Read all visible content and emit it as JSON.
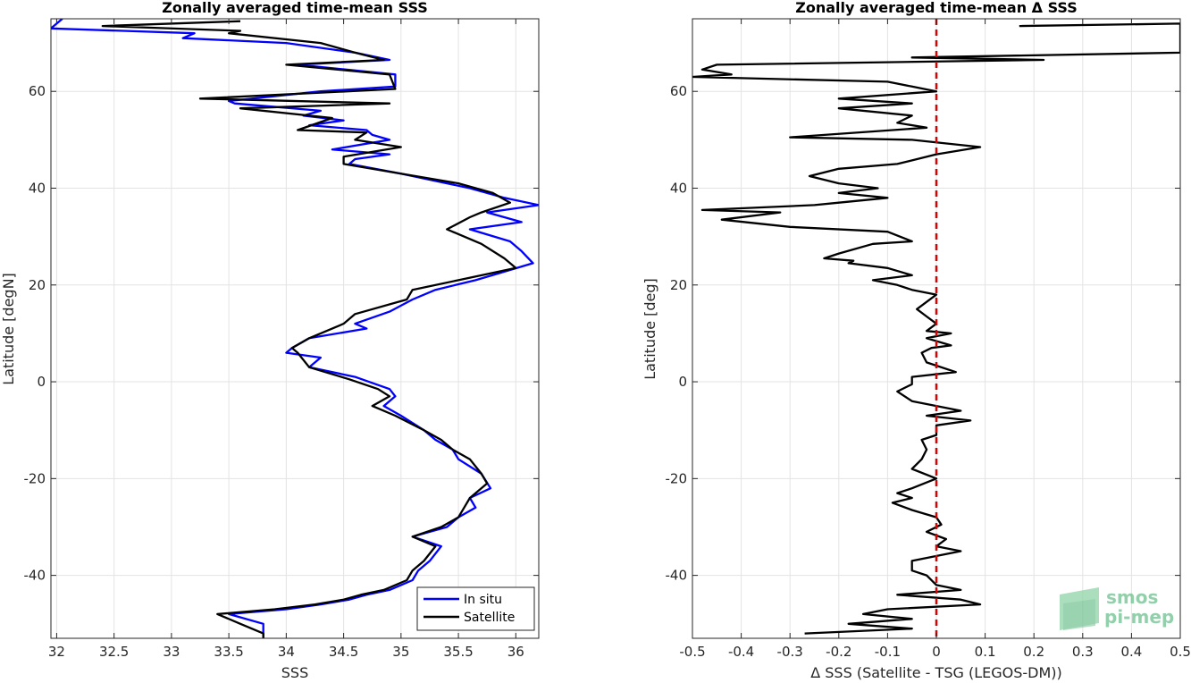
{
  "chart_data": [
    {
      "type": "line",
      "title": "Zonally averaged time-mean SSS",
      "xlabel": "SSS",
      "ylabel": "Latitude [degN]",
      "xlim": [
        31.95,
        36.2
      ],
      "ylim": [
        -53,
        75
      ],
      "xticks": [
        "32",
        "32.5",
        "33",
        "33.5",
        "34",
        "34.5",
        "35",
        "35.5",
        "36"
      ],
      "yticks": [
        "-40",
        "-20",
        "0",
        "20",
        "40",
        "60"
      ],
      "grid": true,
      "legend_position": "bottom-right",
      "series": [
        {
          "name": "In situ",
          "color": "#0000ff",
          "points": [
            [
              32.05,
              75
            ],
            [
              31.95,
              73
            ],
            [
              33.2,
              72
            ],
            [
              33.1,
              71
            ],
            [
              34.0,
              70
            ],
            [
              34.6,
              68
            ],
            [
              34.9,
              66.5
            ],
            [
              34.1,
              65.5
            ],
            [
              34.95,
              63.5
            ],
            [
              34.95,
              61
            ],
            [
              34.3,
              60
            ],
            [
              33.5,
              58
            ],
            [
              33.55,
              57.5
            ],
            [
              34.3,
              56
            ],
            [
              34.15,
              55
            ],
            [
              34.5,
              54
            ],
            [
              34.2,
              53
            ],
            [
              34.7,
              52
            ],
            [
              34.75,
              51
            ],
            [
              34.9,
              50
            ],
            [
              34.4,
              48
            ],
            [
              34.9,
              47
            ],
            [
              34.6,
              46
            ],
            [
              34.55,
              45
            ],
            [
              35.0,
              43
            ],
            [
              35.6,
              40
            ],
            [
              35.9,
              38
            ],
            [
              36.2,
              36.5
            ],
            [
              35.75,
              35
            ],
            [
              36.05,
              33
            ],
            [
              35.6,
              31.5
            ],
            [
              35.95,
              29
            ],
            [
              36.05,
              27
            ],
            [
              36.15,
              24.5
            ],
            [
              35.65,
              21
            ],
            [
              35.3,
              19
            ],
            [
              35.1,
              17
            ],
            [
              34.9,
              14.5
            ],
            [
              34.6,
              12
            ],
            [
              34.7,
              11
            ],
            [
              34.2,
              9
            ],
            [
              34.05,
              7
            ],
            [
              34.0,
              6
            ],
            [
              34.3,
              5
            ],
            [
              34.2,
              3
            ],
            [
              34.6,
              1
            ],
            [
              34.9,
              -1.5
            ],
            [
              34.95,
              -3
            ],
            [
              34.85,
              -5
            ],
            [
              35.0,
              -7
            ],
            [
              35.2,
              -10
            ],
            [
              35.3,
              -12
            ],
            [
              35.45,
              -14
            ],
            [
              35.5,
              -16
            ],
            [
              35.7,
              -19
            ],
            [
              35.78,
              -22
            ],
            [
              35.6,
              -24
            ],
            [
              35.65,
              -26
            ],
            [
              35.5,
              -28
            ],
            [
              35.4,
              -30
            ],
            [
              35.1,
              -32
            ],
            [
              35.35,
              -34
            ],
            [
              35.25,
              -37
            ],
            [
              35.15,
              -39
            ],
            [
              35.1,
              -41
            ],
            [
              34.9,
              -43
            ],
            [
              34.7,
              -44
            ],
            [
              34.55,
              -45
            ],
            [
              34.3,
              -46
            ],
            [
              34.0,
              -47
            ],
            [
              33.5,
              -48
            ],
            [
              33.8,
              -50
            ],
            [
              33.8,
              -52
            ],
            [
              33.8,
              -53
            ]
          ]
        },
        {
          "name": "Satellite",
          "color": "#000000",
          "points": [
            [
              33.6,
              74.5
            ],
            [
              32.4,
              73.5
            ],
            [
              33.6,
              72.5
            ],
            [
              33.5,
              72
            ],
            [
              34.3,
              70
            ],
            [
              34.6,
              68
            ],
            [
              34.85,
              66.5
            ],
            [
              34.0,
              65.5
            ],
            [
              34.9,
              63.5
            ],
            [
              34.95,
              60.5
            ],
            [
              33.25,
              58.5
            ],
            [
              34.9,
              57.5
            ],
            [
              33.6,
              56.5
            ],
            [
              34.4,
              54.5
            ],
            [
              34.1,
              52
            ],
            [
              34.7,
              51.5
            ],
            [
              34.6,
              50
            ],
            [
              35.0,
              48.5
            ],
            [
              34.5,
              46.5
            ],
            [
              34.5,
              45
            ],
            [
              35.0,
              43
            ],
            [
              35.5,
              41
            ],
            [
              35.8,
              39
            ],
            [
              35.95,
              37
            ],
            [
              35.7,
              35
            ],
            [
              35.6,
              34
            ],
            [
              35.4,
              31.5
            ],
            [
              35.7,
              28.5
            ],
            [
              35.9,
              25.5
            ],
            [
              36.0,
              23.5
            ],
            [
              35.5,
              21
            ],
            [
              35.1,
              19
            ],
            [
              35.05,
              17
            ],
            [
              34.6,
              14
            ],
            [
              34.5,
              12
            ],
            [
              34.2,
              9
            ],
            [
              34.05,
              7
            ],
            [
              34.1,
              6
            ],
            [
              34.2,
              3
            ],
            [
              34.55,
              0.5
            ],
            [
              34.8,
              -1.5
            ],
            [
              34.9,
              -3
            ],
            [
              34.75,
              -5
            ],
            [
              34.95,
              -7
            ],
            [
              35.2,
              -10
            ],
            [
              35.35,
              -12
            ],
            [
              35.45,
              -14
            ],
            [
              35.6,
              -16
            ],
            [
              35.7,
              -19
            ],
            [
              35.75,
              -21
            ],
            [
              35.6,
              -24
            ],
            [
              35.55,
              -26
            ],
            [
              35.5,
              -28
            ],
            [
              35.35,
              -30
            ],
            [
              35.1,
              -32
            ],
            [
              35.3,
              -34
            ],
            [
              35.2,
              -37
            ],
            [
              35.1,
              -39
            ],
            [
              35.05,
              -41
            ],
            [
              34.85,
              -43
            ],
            [
              34.65,
              -44
            ],
            [
              34.5,
              -45
            ],
            [
              34.25,
              -46
            ],
            [
              33.9,
              -47
            ],
            [
              33.4,
              -48
            ],
            [
              33.6,
              -50
            ],
            [
              33.8,
              -52
            ],
            [
              33.8,
              -53
            ]
          ]
        }
      ]
    },
    {
      "type": "line",
      "title": "Zonally averaged time-mean Δ SSS",
      "xlabel": "Δ SSS (Satellite - TSG (LEGOS-DM))",
      "ylabel": "Latitude [deg]",
      "xlim": [
        -0.5,
        0.5
      ],
      "ylim": [
        -53,
        75
      ],
      "xticks": [
        "-0.5",
        "-0.4",
        "-0.3",
        "-0.2",
        "-0.1",
        "0",
        "0.1",
        "0.2",
        "0.3",
        "0.4",
        "0.5"
      ],
      "yticks": [
        "-40",
        "-20",
        "0",
        "20",
        "40",
        "60"
      ],
      "grid": true,
      "reference_line": {
        "x": 0,
        "color": "#dd0000",
        "style": "dashed"
      },
      "series": [
        {
          "color": "#000000",
          "points": [
            [
              0.17,
              73.5
            ],
            [
              0.5,
              74
            ],
            [
              0.5,
              73
            ],
            [
              0.5,
              70
            ],
            [
              0.5,
              68
            ],
            [
              -0.05,
              67
            ],
            [
              0.22,
              66.5
            ],
            [
              -0.45,
              65.5
            ],
            [
              -0.48,
              64.5
            ],
            [
              -0.42,
              63.5
            ],
            [
              -0.5,
              63
            ],
            [
              -0.1,
              62
            ],
            [
              -0.05,
              61
            ],
            [
              -0.0,
              60
            ],
            [
              -0.2,
              58.5
            ],
            [
              -0.05,
              57.5
            ],
            [
              -0.2,
              56.5
            ],
            [
              -0.05,
              55
            ],
            [
              -0.08,
              53.5
            ],
            [
              -0.02,
              52.5
            ],
            [
              -0.3,
              50.5
            ],
            [
              -0.05,
              50
            ],
            [
              0.09,
              48.5
            ],
            [
              0.0,
              47
            ],
            [
              -0.08,
              45
            ],
            [
              -0.2,
              44
            ],
            [
              -0.26,
              42.5
            ],
            [
              -0.2,
              41
            ],
            [
              -0.12,
              40
            ],
            [
              -0.2,
              39
            ],
            [
              -0.1,
              38
            ],
            [
              -0.2,
              37
            ],
            [
              -0.25,
              36.5
            ],
            [
              -0.48,
              35.5
            ],
            [
              -0.32,
              35
            ],
            [
              -0.44,
              33.5
            ],
            [
              -0.3,
              32
            ],
            [
              -0.1,
              31
            ],
            [
              -0.05,
              29
            ],
            [
              -0.13,
              28.5
            ],
            [
              -0.2,
              26.5
            ],
            [
              -0.23,
              25.5
            ],
            [
              -0.17,
              25
            ],
            [
              -0.18,
              24.5
            ],
            [
              -0.1,
              23.5
            ],
            [
              -0.05,
              22
            ],
            [
              -0.13,
              21
            ],
            [
              -0.08,
              20
            ],
            [
              -0.05,
              19
            ],
            [
              -0.0,
              18
            ],
            [
              -0.04,
              15
            ],
            [
              -0.02,
              13.5
            ],
            [
              0.0,
              12
            ],
            [
              -0.02,
              10.5
            ],
            [
              0.03,
              10
            ],
            [
              -0.02,
              9
            ],
            [
              0.03,
              7.5
            ],
            [
              -0.01,
              7
            ],
            [
              -0.03,
              6
            ],
            [
              -0.02,
              4
            ],
            [
              0.04,
              2
            ],
            [
              -0.05,
              1
            ],
            [
              -0.05,
              -0.5
            ],
            [
              -0.08,
              -2
            ],
            [
              -0.05,
              -4
            ],
            [
              0.05,
              -6
            ],
            [
              -0.02,
              -7
            ],
            [
              0.07,
              -8
            ],
            [
              0.0,
              -9
            ],
            [
              0.0,
              -11
            ],
            [
              -0.03,
              -12
            ],
            [
              -0.02,
              -14
            ],
            [
              -0.03,
              -16
            ],
            [
              -0.05,
              -18
            ],
            [
              0.0,
              -20
            ],
            [
              -0.05,
              -22
            ],
            [
              -0.08,
              -23
            ],
            [
              -0.05,
              -24
            ],
            [
              -0.09,
              -25
            ],
            [
              -0.05,
              -26.5
            ],
            [
              0.0,
              -28
            ],
            [
              0.01,
              -29.5
            ],
            [
              -0.02,
              -31
            ],
            [
              0.02,
              -32.5
            ],
            [
              0.0,
              -34
            ],
            [
              0.05,
              -35
            ],
            [
              -0.05,
              -37
            ],
            [
              -0.05,
              -39
            ],
            [
              -0.02,
              -40
            ],
            [
              0.0,
              -42
            ],
            [
              0.05,
              -43
            ],
            [
              -0.08,
              -44
            ],
            [
              0.05,
              -45
            ],
            [
              0.09,
              -46
            ],
            [
              -0.1,
              -47
            ],
            [
              -0.15,
              -48
            ],
            [
              -0.05,
              -49
            ],
            [
              -0.18,
              -50
            ],
            [
              -0.05,
              -51
            ],
            [
              -0.27,
              -52
            ]
          ]
        }
      ]
    }
  ],
  "legend": {
    "items": [
      {
        "name": "In situ",
        "color": "#0000ff"
      },
      {
        "name": "Satellite",
        "color": "#000000"
      }
    ]
  },
  "logo": {
    "line1": "smos",
    "line2": "pi-mep"
  }
}
